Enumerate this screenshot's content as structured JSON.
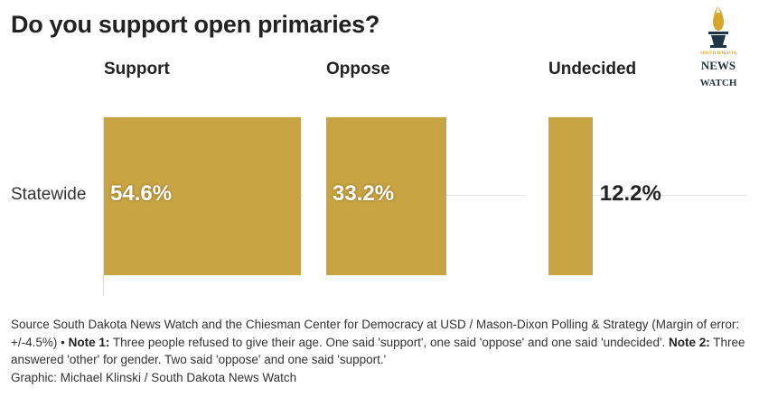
{
  "title": "Do you support open primaries?",
  "logo_text": [
    "SOUTH DAKOTA",
    "NEWS",
    "WATCH"
  ],
  "colors": {
    "bar": "#c9a443",
    "label_inside": "#ffffff",
    "label_outside": "#222222"
  },
  "chart_data": {
    "type": "bar",
    "orientation": "horizontal-split",
    "title": "Do you support open primaries?",
    "categories": [
      "Statewide"
    ],
    "series": [
      {
        "name": "Support",
        "values": [
          54.6
        ],
        "label": "54.6%"
      },
      {
        "name": "Oppose",
        "values": [
          33.2
        ],
        "label": "33.2%"
      },
      {
        "name": "Undecided",
        "values": [
          12.2
        ],
        "label": "12.2%"
      }
    ],
    "xlim": [
      0,
      55
    ],
    "unit": "%"
  },
  "notes": {
    "source": "Source South Dakota News Watch and the Chiesman Center for Democracy at USD / Mason-Dixon Polling & Strategy (Margin of error: +/-4.5%) • ",
    "note1_label": "Note 1:",
    "note1": " Three people refused to give their age. One said 'support', one said 'oppose' and one said 'undecided'. ",
    "note2_label": "Note 2:",
    "note2": " Three answered 'other' for gender. Two said 'oppose' and one said 'support.'",
    "credit": "Graphic: Michael Klinski / South Dakota News Watch"
  }
}
